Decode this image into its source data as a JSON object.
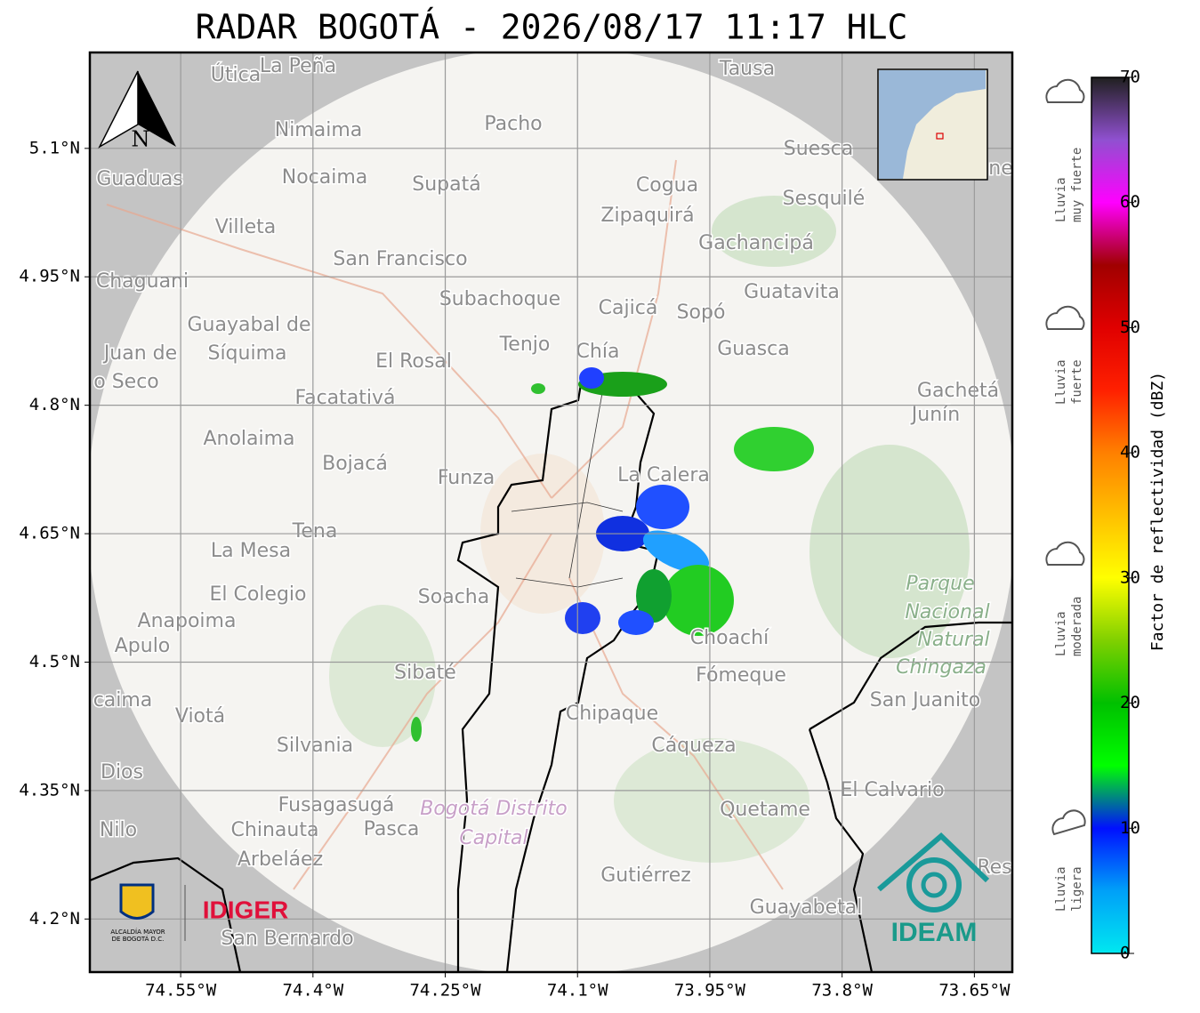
{
  "title": "RADAR BOGOTÁ - 2026/08/17 11:17 HLC",
  "map": {
    "xlim": [
      -74.653,
      -73.607
    ],
    "ylim": [
      4.138,
      5.212
    ],
    "grid": true,
    "xticks": [
      {
        "value": -74.55,
        "label": "74.55°W"
      },
      {
        "value": -74.4,
        "label": "74.4°W"
      },
      {
        "value": -74.25,
        "label": "74.25°W"
      },
      {
        "value": -74.1,
        "label": "74.1°W"
      },
      {
        "value": -73.95,
        "label": "73.95°W"
      },
      {
        "value": -73.8,
        "label": "73.8°W"
      },
      {
        "value": -73.65,
        "label": "73.65°W"
      }
    ],
    "yticks": [
      {
        "value": 5.1,
        "label": "5.1°N"
      },
      {
        "value": 4.95,
        "label": "4.95°N"
      },
      {
        "value": 4.8,
        "label": "4.8°N"
      },
      {
        "value": 4.65,
        "label": "4.65°N"
      },
      {
        "value": 4.5,
        "label": "4.5°N"
      },
      {
        "value": 4.35,
        "label": "4.35°N"
      },
      {
        "value": 4.2,
        "label": "4.2°N"
      }
    ],
    "north_label": "N",
    "places": [
      "Útica",
      "La Peña",
      "Tausa",
      "Pacho",
      "Nimaima",
      "Guaduas",
      "Nocaima",
      "Supatá",
      "Cogua",
      "Suesca",
      "Sesquilé",
      "Villeta",
      "Zipaquirá",
      "Gachancipá",
      "San Francisco",
      "Chaguani",
      "Guatavita",
      "Subachoque",
      "Cajicá",
      "Sopó",
      "Guayabal de",
      "Síquima",
      "Juan de",
      "o Seco",
      "Tenjo",
      "Chía",
      "Guasca",
      "El Rosal",
      "Facatativá",
      "Gachetá",
      "Junín",
      "Anolaima",
      "Bojacá",
      "Funza",
      "La Calera",
      "Tena",
      "La Mesa",
      "Soacha",
      "El Colegio",
      "Anapoima",
      "Apulo",
      "Choachí",
      "Parque",
      "Nacional",
      "Natural",
      "Chingaza",
      "Sibaté",
      "Fómeque",
      "San Juanito",
      "caima",
      "Viotá",
      "Chipaque",
      "Silvania",
      "Cáqueza",
      "Dios",
      "El Calvario",
      "Fusagasugá",
      "Quetame",
      "Bogotá Distrito",
      "Capital",
      "Nilo",
      "Chinauta",
      "Pasca",
      "Arbeláez",
      "Gutiérrez",
      "Guayabetal",
      "San Bernardo",
      "Res",
      "ne"
    ]
  },
  "colorbar": {
    "label": "Factor de reflectividad (dBZ)",
    "lim": [
      0,
      70
    ],
    "ticks": [
      0,
      10,
      20,
      30,
      40,
      50,
      60,
      70
    ],
    "colors": [
      "#00e8f0",
      "#00a0f8",
      "#0010ff",
      "#00ff00",
      "#00c000",
      "#80d000",
      "#ffff00",
      "#ffc000",
      "#ff8000",
      "#ff2000",
      "#e00000",
      "#a00000",
      "#ff00ff",
      "#9050d0",
      "#202020"
    ]
  },
  "rain_levels": [
    [
      "Lluvia",
      "muy fuerte"
    ],
    [
      "Lluvia",
      "fuerte"
    ],
    [
      "Lluvia",
      "moderada"
    ],
    [
      "Lluvia",
      "ligera"
    ]
  ],
  "logos": {
    "alcaldia": [
      "ALCALDÍA MAYOR",
      "DE BOGOTÁ D.C."
    ],
    "idiger": "IDIGER",
    "ideam": "IDEAM"
  }
}
